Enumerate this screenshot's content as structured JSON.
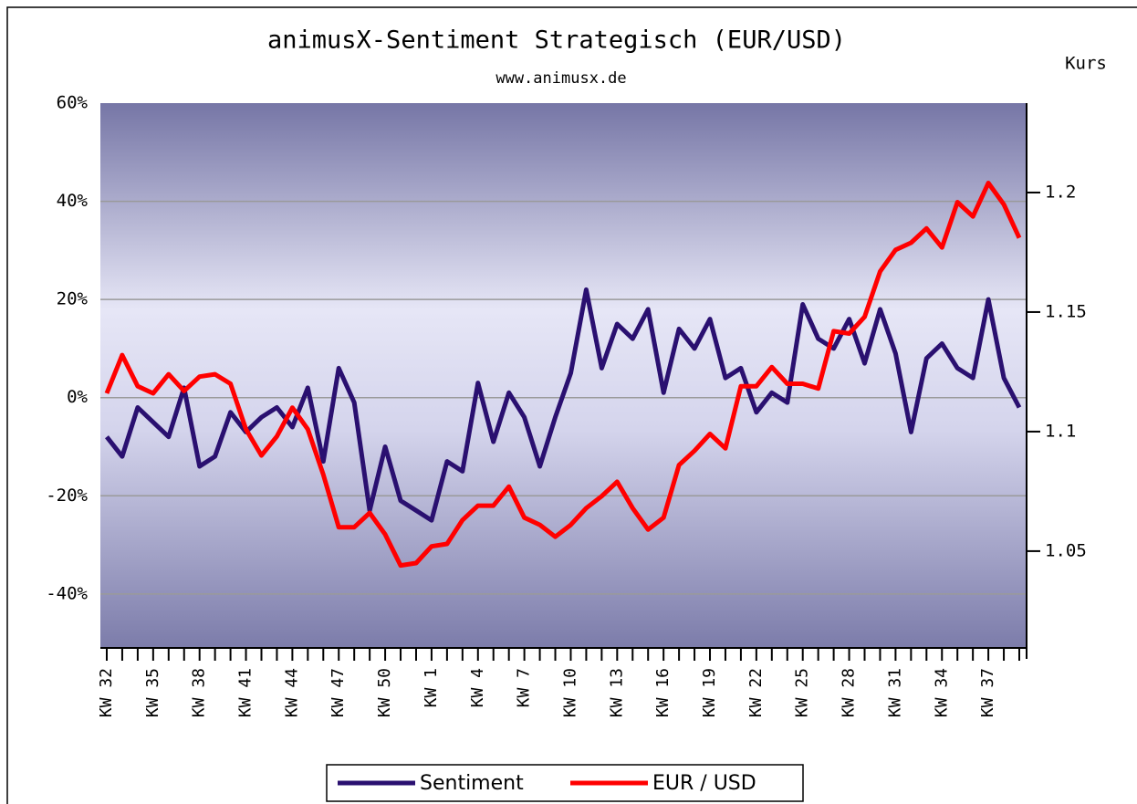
{
  "chart_data": {
    "type": "line",
    "title": "animusX-Sentiment Strategisch (EUR/USD)",
    "subtitle": "www.animusx.de",
    "y2_label": "Kurs",
    "categories": [
      "KW 32",
      null,
      null,
      "KW 35",
      null,
      null,
      "KW 38",
      null,
      null,
      "KW 41",
      null,
      null,
      "KW 44",
      null,
      null,
      "KW 47",
      null,
      null,
      "KW 50",
      null,
      null,
      "KW 1",
      null,
      null,
      "KW 4",
      null,
      null,
      "KW 7",
      null,
      null,
      "KW 10",
      null,
      null,
      "KW 13",
      null,
      null,
      "KW 16",
      null,
      null,
      "KW 19",
      null,
      null,
      "KW 22",
      null,
      null,
      "KW 25",
      null,
      null,
      "KW 28",
      null,
      null,
      "KW 31",
      null,
      null,
      "KW 34",
      null,
      null,
      "KW 37",
      null,
      null
    ],
    "series": [
      {
        "name": "Sentiment",
        "color": "#2a1070",
        "values": [
          -8,
          -12,
          -2,
          -5,
          -8,
          2,
          -14,
          -12,
          -3,
          -7,
          -4,
          -2,
          -6,
          2,
          -13,
          6,
          -1,
          -23,
          -10,
          -21,
          -23,
          -25,
          -13,
          -15,
          3,
          -9,
          1,
          -4,
          -14,
          -4,
          5,
          22,
          6,
          15,
          12,
          18,
          1,
          14,
          10,
          16,
          4,
          6,
          -3,
          1,
          -1,
          19,
          12,
          10,
          16,
          7,
          18,
          9,
          -7,
          8,
          11,
          6,
          4,
          20,
          4,
          -2
        ]
      },
      {
        "name": "EUR / USD",
        "color": "#ff0000",
        "axis": "y2",
        "values": [
          1.116,
          1.132,
          1.119,
          1.116,
          1.124,
          1.117,
          1.123,
          1.124,
          1.12,
          1.101,
          1.09,
          1.098,
          1.11,
          1.101,
          1.082,
          1.06,
          1.06,
          1.066,
          1.057,
          1.044,
          1.045,
          1.052,
          1.053,
          1.063,
          1.069,
          1.069,
          1.077,
          1.064,
          1.061,
          1.056,
          1.061,
          1.068,
          1.073,
          1.079,
          1.068,
          1.059,
          1.064,
          1.086,
          1.092,
          1.099,
          1.093,
          1.119,
          1.119,
          1.127,
          1.12,
          1.12,
          1.118,
          1.142,
          1.141,
          1.148,
          1.167,
          1.176,
          1.179,
          1.185,
          1.177,
          1.196,
          1.19,
          1.204,
          1.195,
          1.181
        ]
      }
    ],
    "ylim": [
      -51,
      60
    ],
    "yticks": [
      {
        "value": 60,
        "label": "60%"
      },
      {
        "value": 40,
        "label": "40%"
      },
      {
        "value": 20,
        "label": "20%"
      },
      {
        "value": 0,
        "label": "0%"
      },
      {
        "value": -20,
        "label": "-20%"
      },
      {
        "value": -40,
        "label": "-40%"
      }
    ],
    "y2lim": [
      1.0095,
      1.2374
    ],
    "y2ticks": [
      1.2,
      1.15,
      1.1,
      1.05
    ],
    "grid": true,
    "legend": "bottom"
  }
}
